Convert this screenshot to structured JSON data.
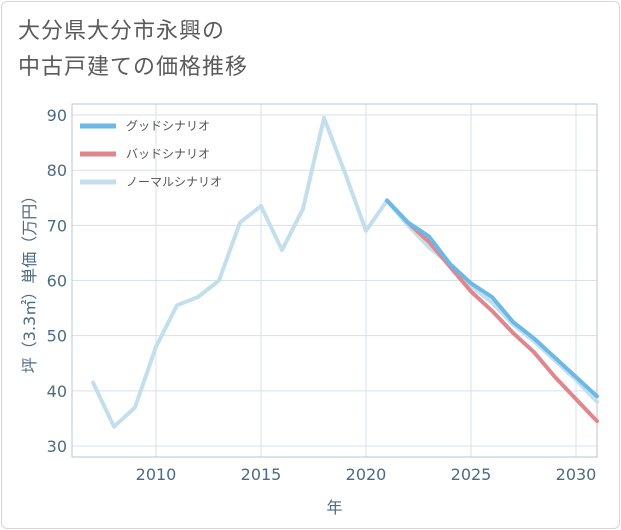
{
  "title_lines": [
    "大分県大分市永興の",
    "中古戸建ての価格推移"
  ],
  "chart_data": {
    "type": "line",
    "title": "大分県大分市永興の中古戸建ての価格推移",
    "xlabel": "年",
    "ylabel": "坪（3.3㎡）単価（万円）",
    "xlim": [
      2006,
      2031
    ],
    "ylim": [
      28,
      92
    ],
    "x_ticks": [
      2010,
      2015,
      2020,
      2025,
      2030
    ],
    "y_ticks": [
      30,
      40,
      50,
      60,
      70,
      80,
      90
    ],
    "grid": true,
    "legend_position": "top-left",
    "series": [
      {
        "name": "グッドシナリオ",
        "color": "#6cb8e6",
        "x": [
          2021,
          2022,
          2023,
          2024,
          2025,
          2026,
          2027,
          2028,
          2029,
          2030,
          2031
        ],
        "values": [
          74.5,
          70.5,
          68.0,
          63.0,
          59.5,
          57.0,
          52.5,
          49.5,
          46.0,
          42.5,
          39.0
        ]
      },
      {
        "name": "バッドシナリオ",
        "color": "#e0868d",
        "x": [
          2021,
          2022,
          2023,
          2024,
          2025,
          2026,
          2027,
          2028,
          2029,
          2030,
          2031
        ],
        "values": [
          74.5,
          70.5,
          67.0,
          62.5,
          58.0,
          54.5,
          50.5,
          47.0,
          42.5,
          38.5,
          34.5
        ]
      },
      {
        "name": "ノーマルシナリオ",
        "color": "#c4dfec",
        "x": [
          2007,
          2008,
          2009,
          2010,
          2011,
          2012,
          2013,
          2014,
          2015,
          2016,
          2017,
          2018,
          2019,
          2020,
          2021,
          2022,
          2023,
          2024,
          2025,
          2026,
          2027,
          2028,
          2029,
          2030,
          2031
        ],
        "values": [
          41.5,
          33.5,
          37.0,
          48.0,
          55.5,
          57.0,
          60.0,
          70.5,
          73.5,
          65.5,
          73.0,
          89.5,
          79.5,
          69.0,
          74.5,
          70.0,
          66.0,
          63.0,
          59.0,
          56.0,
          52.0,
          49.0,
          45.5,
          42.0,
          38.0
        ]
      }
    ]
  }
}
